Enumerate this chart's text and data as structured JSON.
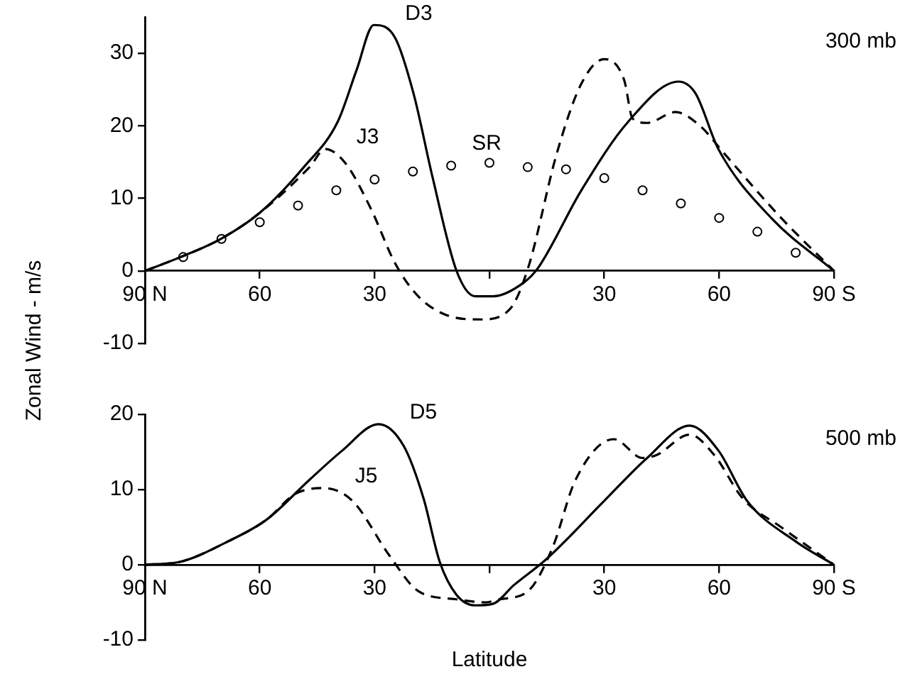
{
  "chart_data": [
    {
      "type": "line",
      "ylabel": "Zonal Wind - m/s",
      "annotations": [
        "300 mb"
      ],
      "xlim": [
        90,
        -90
      ],
      "ylim": [
        -10,
        35
      ],
      "xticks": [
        {
          "value": 90,
          "label": "90 N"
        },
        {
          "value": 60,
          "label": "60"
        },
        {
          "value": 30,
          "label": "30"
        },
        {
          "value": 0,
          "label": null
        },
        {
          "value": -30,
          "label": "30"
        },
        {
          "value": -60,
          "label": "60"
        },
        {
          "value": -90,
          "label": "90 S"
        }
      ],
      "yticks": [
        -10,
        0,
        10,
        20,
        30
      ],
      "grid": false,
      "legend": false,
      "tick_labels": "xy",
      "series": [
        {
          "name": "D3",
          "type": "line",
          "color": "#000000",
          "line_style": "solid",
          "marker": "none",
          "x": [
            90,
            80.7,
            70.2,
            60,
            48.5,
            39.6,
            34.7,
            30.2,
            24.6,
            19.8,
            14.9,
            8.6,
            3.7,
            -1,
            -9,
            -12.7,
            -24,
            -36.3,
            -49.4,
            -53.8,
            -59.8,
            -73.6,
            -90
          ],
          "values": [
            0,
            1.9,
            4.4,
            8.0,
            14.3,
            20.6,
            27.7,
            33.9,
            32.1,
            24.4,
            13,
            0,
            -3.5,
            -3.5,
            -1.6,
            0.4,
            11.1,
            20.6,
            26.1,
            24.5,
            16.8,
            7.3,
            0
          ]
        },
        {
          "name": "J3",
          "type": "line",
          "color": "#000000",
          "line_style": "dashed",
          "marker": "none",
          "x": [
            90,
            80.7,
            70.2,
            60,
            47,
            42.9,
            37.7,
            31,
            24.6,
            18.6,
            11.2,
            2.2,
            -5.3,
            -10.1,
            -17.6,
            -24,
            -30,
            -35.2,
            -37.4,
            -41.2,
            -48.6,
            -55,
            -61.3,
            -76.2,
            -90
          ],
          "values": [
            0,
            1.9,
            4.4,
            8.0,
            14.3,
            16.8,
            14.9,
            8.6,
            1,
            -3.5,
            -6.1,
            -6.7,
            -5.3,
            0.4,
            16.2,
            25.8,
            29.2,
            26.3,
            21,
            20.4,
            21.9,
            20,
            16.2,
            7.3,
            0
          ]
        },
        {
          "name": "SR",
          "type": "scatter",
          "color": "#000000",
          "marker": "circle",
          "x": [
            80,
            70,
            60,
            50,
            40,
            30,
            20,
            10,
            0,
            -10,
            -20,
            -30,
            -40,
            -50,
            -60,
            -70,
            -80
          ],
          "values": [
            1.9,
            4.4,
            6.7,
            9.0,
            11.1,
            12.6,
            13.7,
            14.5,
            14.9,
            14.3,
            14.0,
            12.8,
            11.1,
            9.3,
            7.3,
            5.4,
            2.5
          ]
        }
      ]
    },
    {
      "type": "line",
      "xlabel": "Latitude",
      "annotations": [
        "500 mb"
      ],
      "xlim": [
        90,
        -90
      ],
      "ylim": [
        -10,
        20
      ],
      "xticks": [
        {
          "value": 90,
          "label": "90 N"
        },
        {
          "value": 60,
          "label": "60"
        },
        {
          "value": 30,
          "label": "30"
        },
        {
          "value": 0,
          "label": null
        },
        {
          "value": -30,
          "label": "30"
        },
        {
          "value": -60,
          "label": "60"
        },
        {
          "value": -90,
          "label": "90 S"
        }
      ],
      "yticks": [
        -10,
        0,
        10,
        20
      ],
      "grid": false,
      "legend": false,
      "series": [
        {
          "name": "D5",
          "type": "line",
          "color": "#000000",
          "line_style": "solid",
          "marker": "none",
          "x": [
            90,
            80.7,
            68.3,
            58.2,
            47,
            38.4,
            29,
            22.4,
            17.2,
            13,
            8.6,
            3.7,
            -0.9,
            -6.4,
            -15,
            -30,
            -41.2,
            -52.3,
            -59.8,
            -67.3,
            -80,
            -90
          ],
          "values": [
            0,
            0.4,
            3.1,
            6,
            11.3,
            15.2,
            18.7,
            15.8,
            8.8,
            0.4,
            -4,
            -5.4,
            -5.2,
            -2.7,
            0.8,
            8.5,
            14.2,
            18.5,
            15.2,
            8.5,
            3.1,
            0
          ]
        },
        {
          "name": "J5",
          "type": "line",
          "color": "#000000",
          "line_style": "dashed",
          "marker": "none",
          "x": [
            90,
            80.7,
            68.3,
            58.2,
            50.8,
            43.3,
            35.8,
            26.1,
            18.6,
            8.6,
            1.1,
            -2.6,
            -10.1,
            -16.5,
            -22.5,
            -32.5,
            -40,
            -43.7,
            -52.3,
            -58.7,
            -66.2,
            -76.2,
            -90
          ],
          "values": [
            0,
            0.4,
            3.1,
            6,
            9.4,
            10.2,
            8.5,
            1.2,
            -3.5,
            -4.6,
            -5,
            -4.6,
            -3.5,
            2.3,
            11.3,
            16.7,
            14.2,
            14.6,
            17.3,
            14.6,
            8.8,
            5,
            0
          ]
        }
      ]
    }
  ]
}
